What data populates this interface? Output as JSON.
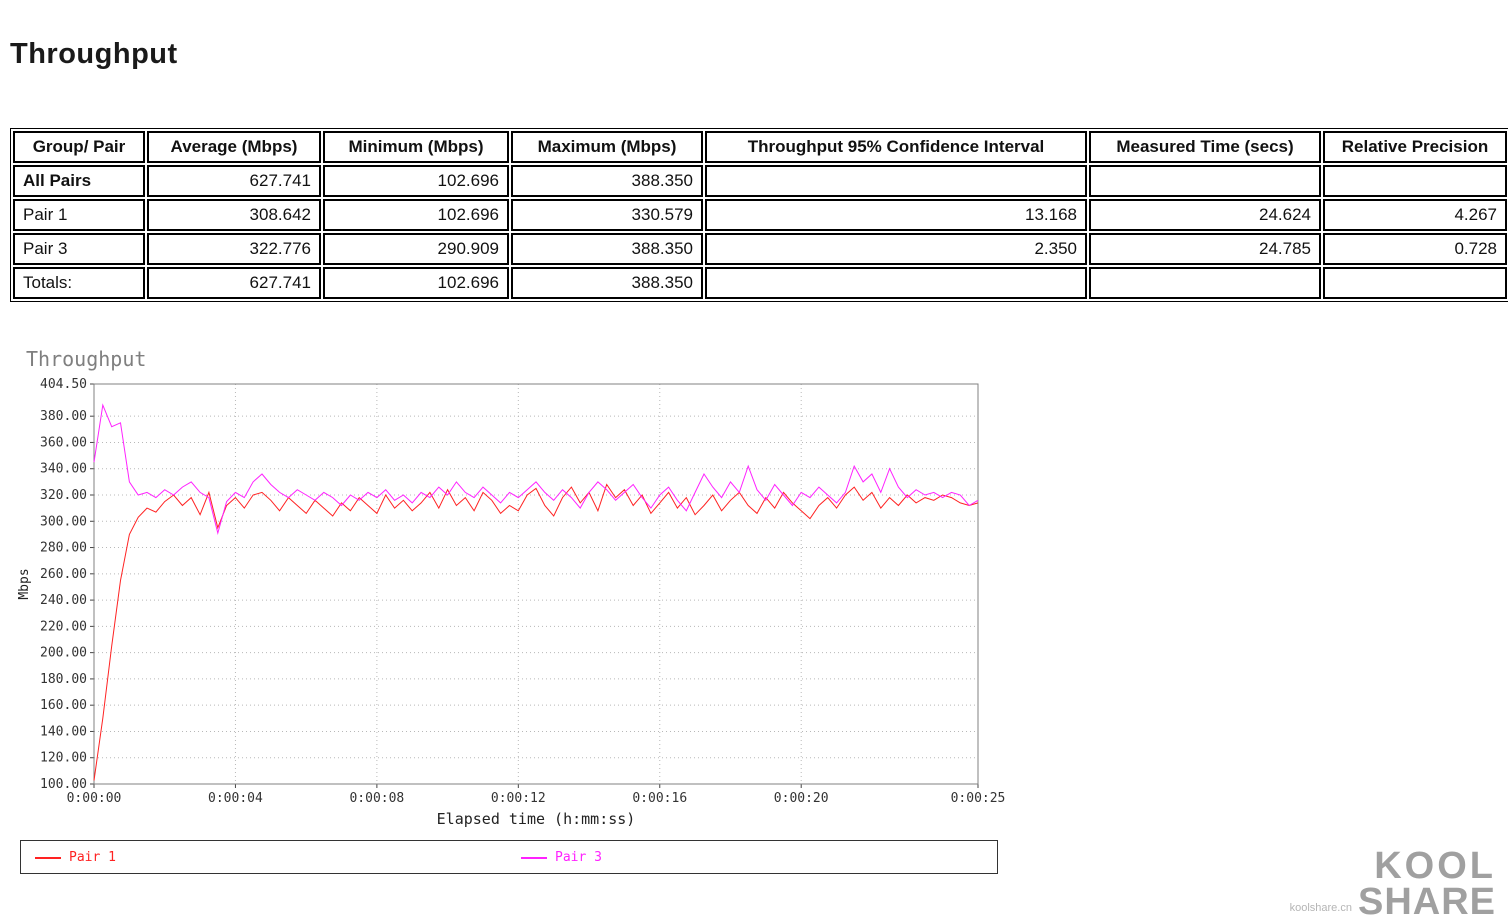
{
  "title": "Throughput",
  "table": {
    "columns": [
      "Group/ Pair",
      "Average (Mbps)",
      "Minimum (Mbps)",
      "Maximum (Mbps)",
      "Throughput 95% Confidence Interval",
      "Measured Time (secs)",
      "Relative Precision"
    ],
    "rows": [
      {
        "cells": [
          "All Pairs",
          "627.741",
          "102.696",
          "388.350",
          "",
          "",
          ""
        ]
      },
      {
        "cells": [
          "Pair 1",
          "308.642",
          "102.696",
          "330.579",
          "13.168",
          "24.624",
          "4.267"
        ]
      },
      {
        "cells": [
          "Pair 3",
          "322.776",
          "290.909",
          "388.350",
          "2.350",
          "24.785",
          "0.728"
        ]
      },
      {
        "cells": [
          "Totals:",
          "627.741",
          "102.696",
          "388.350",
          "",
          "",
          ""
        ]
      }
    ]
  },
  "chart_data": {
    "type": "line",
    "title": "Throughput",
    "xlabel": "Elapsed time (h:mm:ss)",
    "ylabel": "Mbps",
    "xlim": [
      0,
      25
    ],
    "ylim": [
      100,
      404.5
    ],
    "grid": true,
    "legend_position": "bottom",
    "x_ticks": [
      {
        "value": 0,
        "label": "0:00:00"
      },
      {
        "value": 4,
        "label": "0:00:04"
      },
      {
        "value": 8,
        "label": "0:00:08"
      },
      {
        "value": 12,
        "label": "0:00:12"
      },
      {
        "value": 16,
        "label": "0:00:16"
      },
      {
        "value": 20,
        "label": "0:00:20"
      },
      {
        "value": 25,
        "label": "0:00:25"
      }
    ],
    "y_ticks": [
      {
        "value": 404.5,
        "label": "404.50"
      },
      {
        "value": 380,
        "label": "380.00"
      },
      {
        "value": 360,
        "label": "360.00"
      },
      {
        "value": 340,
        "label": "340.00"
      },
      {
        "value": 320,
        "label": "320.00"
      },
      {
        "value": 300,
        "label": "300.00"
      },
      {
        "value": 280,
        "label": "280.00"
      },
      {
        "value": 260,
        "label": "260.00"
      },
      {
        "value": 240,
        "label": "240.00"
      },
      {
        "value": 220,
        "label": "220.00"
      },
      {
        "value": 200,
        "label": "200.00"
      },
      {
        "value": 180,
        "label": "180.00"
      },
      {
        "value": 160,
        "label": "160.00"
      },
      {
        "value": 140,
        "label": "140.00"
      },
      {
        "value": 120,
        "label": "120.00"
      },
      {
        "value": 100,
        "label": "100.00"
      }
    ],
    "x_start": 0,
    "x_step": 0.25,
    "series": [
      {
        "name": "Pair 1",
        "color": "#ff2222",
        "values": [
          102.7,
          150,
          205,
          255,
          290,
          303,
          310,
          307,
          315,
          320,
          312,
          318,
          305,
          322,
          295,
          312,
          318,
          310,
          320,
          322,
          316,
          308,
          318,
          312,
          306,
          316,
          310,
          304,
          314,
          308,
          318,
          312,
          306,
          320,
          310,
          316,
          308,
          314,
          322,
          310,
          324,
          312,
          318,
          308,
          322,
          316,
          306,
          312,
          308,
          320,
          325,
          312,
          304,
          318,
          326,
          314,
          322,
          308,
          328,
          318,
          324,
          312,
          320,
          306,
          314,
          322,
          310,
          318,
          305,
          312,
          320,
          308,
          316,
          322,
          312,
          306,
          318,
          310,
          322,
          314,
          308,
          302,
          312,
          318,
          310,
          320,
          326,
          316,
          322,
          310,
          318,
          312,
          320,
          314,
          318,
          316,
          320,
          318,
          314,
          312,
          314
        ]
      },
      {
        "name": "Pair 3",
        "color": "#ff22ff",
        "values": [
          345,
          388.4,
          372,
          375,
          330,
          320,
          322,
          318,
          324,
          320,
          326,
          330,
          322,
          318,
          291,
          315,
          322,
          318,
          330,
          336,
          328,
          322,
          318,
          324,
          320,
          316,
          322,
          318,
          312,
          320,
          316,
          322,
          318,
          324,
          316,
          320,
          314,
          322,
          318,
          326,
          320,
          330,
          322,
          318,
          326,
          320,
          314,
          322,
          318,
          324,
          330,
          322,
          316,
          324,
          318,
          310,
          322,
          330,
          324,
          316,
          322,
          328,
          318,
          310,
          320,
          326,
          316,
          308,
          322,
          336,
          326,
          318,
          330,
          322,
          342,
          324,
          316,
          328,
          320,
          312,
          322,
          318,
          326,
          320,
          314,
          322,
          342,
          330,
          336,
          322,
          340,
          326,
          318,
          324,
          320,
          322,
          318,
          322,
          320,
          312,
          316
        ]
      }
    ]
  },
  "watermark": {
    "line1": "KOOL",
    "line2": "SHARE",
    "site": "koolshare.cn"
  }
}
